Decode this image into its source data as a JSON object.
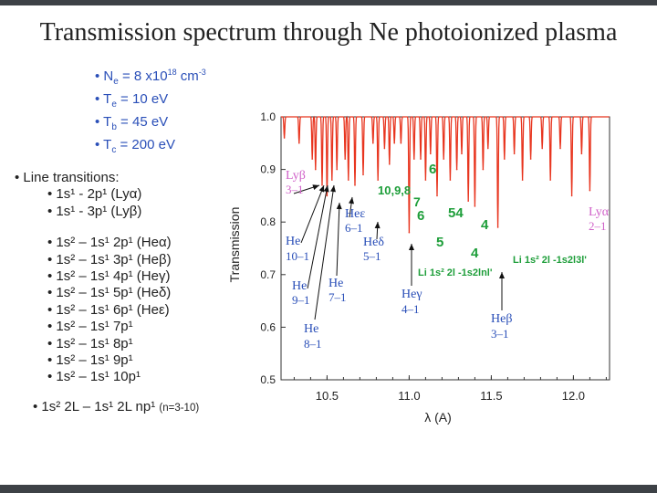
{
  "title": "Transmission spectrum through Ne photoionized plasma",
  "parameters": [
    {
      "sym": "N",
      "sub": "e",
      "mid": " = 8 x10",
      "sup": "18",
      "tail": " cm",
      "sup2": "-3"
    },
    {
      "sym": "T",
      "sub": "e",
      "mid": " =   10 eV",
      "sup": "",
      "tail": "",
      "sup2": ""
    },
    {
      "sym": "T",
      "sub": "b",
      "mid": " =   45 eV",
      "sup": "",
      "tail": "",
      "sup2": ""
    },
    {
      "sym": "T",
      "sub": "c",
      "mid": " = 200 eV",
      "sup": "",
      "tail": "",
      "sup2": ""
    }
  ],
  "transitions_heading": "Line transitions:",
  "transitions_group1": [
    "1s¹ - 2p¹     (Lyα)",
    "1s¹ - 3p¹     (Lyβ)"
  ],
  "transitions_group2": [
    "1s² – 1s¹ 2p¹ (Heα)",
    "1s² – 1s¹ 3p¹ (Heβ)",
    "1s² – 1s¹ 4p¹ (Heγ)",
    "1s² – 1s¹ 5p¹ (Heδ)",
    "1s² – 1s¹ 6p¹ (Heε)",
    "1s² – 1s¹ 7p¹",
    "1s² – 1s¹ 8p¹",
    "1s² – 1s¹ 9p¹",
    "1s² – 1s¹ 10p¹"
  ],
  "transitions_last": "1s² 2L – 1s¹ 2L np¹",
  "transitions_last_note": "(n=3-10)",
  "chart_data": {
    "type": "line",
    "xlabel": "λ (A)",
    "ylabel": "Transmission",
    "xlim": [
      10.22,
      12.22
    ],
    "ylim": [
      0.5,
      1.0
    ],
    "xticks": [
      10.5,
      11.0,
      11.5,
      12.0
    ],
    "yticks": [
      0.5,
      0.6,
      0.7,
      0.8,
      0.9,
      1.0
    ],
    "xtick_labels": [
      "10.5",
      "11.0",
      "11.5",
      "12.0"
    ],
    "ytick_labels": [
      "0.5",
      "0.6",
      "0.7",
      "0.8",
      "0.9",
      "1.0"
    ],
    "series": [
      {
        "name": "Transmission",
        "color": "#e8351f",
        "continuum": 1.0,
        "absorption_lines": [
          {
            "x": 10.24,
            "depth": 0.04
          },
          {
            "x": 10.33,
            "depth": 0.05
          },
          {
            "x": 10.41,
            "depth": 0.08
          },
          {
            "x": 10.43,
            "depth": 0.1
          },
          {
            "x": 10.47,
            "depth": 0.13
          },
          {
            "x": 10.5,
            "depth": 0.15
          },
          {
            "x": 10.53,
            "depth": 0.12
          },
          {
            "x": 10.56,
            "depth": 0.1
          },
          {
            "x": 10.61,
            "depth": 0.08
          },
          {
            "x": 10.63,
            "depth": 0.12
          },
          {
            "x": 10.67,
            "depth": 0.13
          },
          {
            "x": 10.72,
            "depth": 0.11
          },
          {
            "x": 10.78,
            "depth": 0.05
          },
          {
            "x": 10.81,
            "depth": 0.12
          },
          {
            "x": 10.85,
            "depth": 0.06
          },
          {
            "x": 10.88,
            "depth": 0.09
          },
          {
            "x": 10.91,
            "depth": 0.05
          },
          {
            "x": 10.95,
            "depth": 0.05
          },
          {
            "x": 11.0,
            "depth": 0.22
          },
          {
            "x": 11.03,
            "depth": 0.08
          },
          {
            "x": 11.07,
            "depth": 0.08
          },
          {
            "x": 11.1,
            "depth": 0.12
          },
          {
            "x": 11.13,
            "depth": 0.07
          },
          {
            "x": 11.17,
            "depth": 0.15
          },
          {
            "x": 11.21,
            "depth": 0.08
          },
          {
            "x": 11.25,
            "depth": 0.12
          },
          {
            "x": 11.29,
            "depth": 0.1
          },
          {
            "x": 11.32,
            "depth": 0.07
          },
          {
            "x": 11.36,
            "depth": 0.16
          },
          {
            "x": 11.4,
            "depth": 0.17
          },
          {
            "x": 11.45,
            "depth": 0.1
          },
          {
            "x": 11.48,
            "depth": 0.06
          },
          {
            "x": 11.54,
            "depth": 0.21
          },
          {
            "x": 11.58,
            "depth": 0.08
          },
          {
            "x": 11.64,
            "depth": 0.07
          },
          {
            "x": 11.69,
            "depth": 0.12
          },
          {
            "x": 11.74,
            "depth": 0.08
          },
          {
            "x": 11.81,
            "depth": 0.06
          },
          {
            "x": 11.86,
            "depth": 0.12
          },
          {
            "x": 11.92,
            "depth": 0.06
          },
          {
            "x": 11.99,
            "depth": 0.15
          },
          {
            "x": 12.05,
            "depth": 0.07
          },
          {
            "x": 12.1,
            "depth": 0.14
          }
        ]
      }
    ],
    "annotations": [
      {
        "text": "Lyβ",
        "sub": "3–1",
        "color": "#d060c8"
      },
      {
        "text": "Lyα",
        "sub": "2–1",
        "color": "#d060c8"
      },
      {
        "text": "He",
        "sub": "10–1",
        "color": "#2a4fb8"
      },
      {
        "text": "He",
        "sub": "9–1",
        "color": "#2a4fb8"
      },
      {
        "text": "He",
        "sub": "8–1",
        "color": "#2a4fb8"
      },
      {
        "text": "He",
        "sub": "7–1",
        "color": "#2a4fb8"
      },
      {
        "text": "Heε",
        "sub": "6–1",
        "color": "#2a4fb8"
      },
      {
        "text": "Heδ",
        "sub": "5–1",
        "color": "#2a4fb8"
      },
      {
        "text": "Heγ",
        "sub": "4–1",
        "color": "#2a4fb8"
      },
      {
        "text": "Heβ",
        "sub": "3–1",
        "color": "#2a4fb8"
      },
      {
        "text": "10,9,8",
        "color": "#1e9e3a"
      },
      {
        "text": "7",
        "color": "#1e9e3a"
      },
      {
        "text": "6",
        "color": "#1e9e3a"
      },
      {
        "text": "6",
        "color": "#1e9e3a"
      },
      {
        "text": "54",
        "color": "#1e9e3a"
      },
      {
        "text": "5",
        "color": "#1e9e3a"
      },
      {
        "text": "4",
        "color": "#1e9e3a"
      },
      {
        "text": "4",
        "color": "#1e9e3a"
      },
      {
        "text": "Li 1s² 2l -1s2lnl'",
        "color": "#1e9e3a"
      },
      {
        "text": "Li 1s² 2l -1s2l3l'",
        "color": "#1e9e3a"
      }
    ]
  }
}
